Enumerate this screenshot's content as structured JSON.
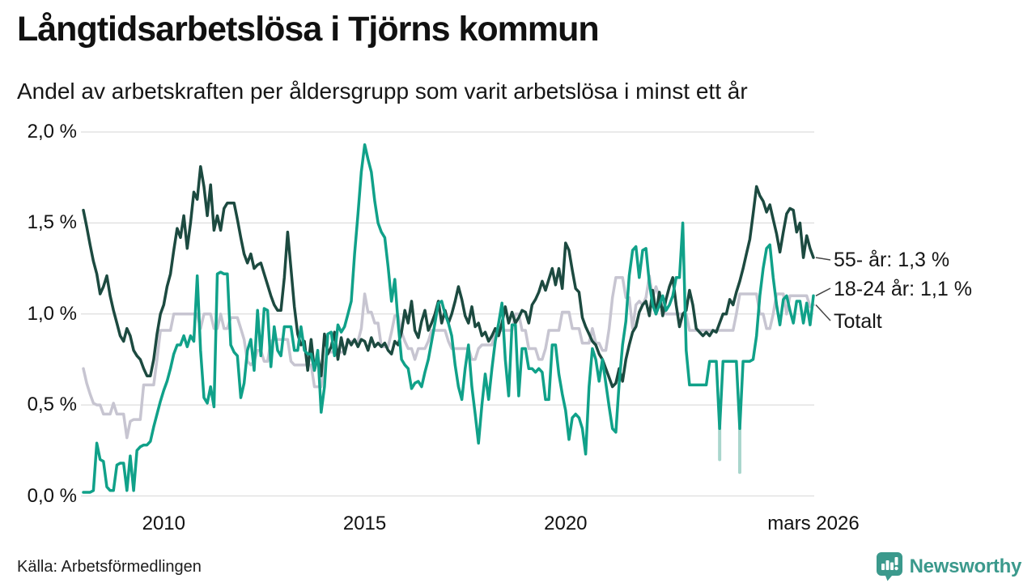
{
  "header": {
    "title": "Långtidsarbetslösa i Tjörns kommun",
    "subtitle": "Andel av arbetskraften per åldersgrupp som varit arbetslösa i minst ett år"
  },
  "footer": {
    "source": "Källa: Arbetsförmedlingen",
    "brand": "Newsworthy"
  },
  "colors": {
    "older": "#1c4a40",
    "youth": "#10a189",
    "total": "#c7c5d1",
    "faint": "#a9d6cc",
    "gridline": "#dedede",
    "connector": "#444444",
    "brand_teal": "#3b998c"
  },
  "chart_data": {
    "type": "line",
    "title": "Långtidsarbetslösa i Tjörns kommun",
    "subtitle": "Andel av arbetskraften per åldersgrupp som varit arbetslösa i minst ett år",
    "x_start": "2008-01",
    "x_end": "2026-03",
    "months_total": 219,
    "ylim": [
      0,
      2.0
    ],
    "grid": true,
    "legend_position": "right-end-labels",
    "y_ticks": [
      {
        "label": "0,0 %",
        "value": 0.0
      },
      {
        "label": "0,5 %",
        "value": 0.5
      },
      {
        "label": "1,0 %",
        "value": 1.0
      },
      {
        "label": "1,5 %",
        "value": 1.5
      },
      {
        "label": "2,0 %",
        "value": 2.0
      }
    ],
    "x_ticks": [
      {
        "label": "2010",
        "month_index": 24
      },
      {
        "label": "2015",
        "month_index": 84
      },
      {
        "label": "2020",
        "month_index": 144
      },
      {
        "label": "mars 2026",
        "month_index": 218
      }
    ],
    "series": [
      {
        "name": "55- år",
        "end_label": "55- år: 1,3 %",
        "end_value_label": "1,3 %",
        "color_key": "older",
        "values": [
          1.57,
          1.48,
          1.38,
          1.29,
          1.22,
          1.11,
          1.15,
          1.21,
          1.1,
          1.02,
          0.95,
          0.88,
          0.85,
          0.92,
          0.88,
          0.8,
          0.77,
          0.75,
          0.7,
          0.66,
          0.66,
          0.75,
          0.89,
          1.0,
          1.05,
          1.15,
          1.22,
          1.35,
          1.47,
          1.42,
          1.54,
          1.36,
          1.5,
          1.67,
          1.63,
          1.81,
          1.7,
          1.54,
          1.71,
          1.46,
          1.54,
          1.46,
          1.58,
          1.61,
          1.61,
          1.61,
          1.52,
          1.42,
          1.33,
          1.28,
          1.33,
          1.25,
          1.27,
          1.28,
          1.22,
          1.16,
          1.1,
          1.05,
          1.02,
          1.02,
          1.2,
          1.45,
          1.25,
          1.04,
          0.89,
          0.83,
          0.85,
          0.69,
          0.86,
          0.69,
          0.77,
          0.66,
          0.89,
          0.78,
          0.82,
          0.9,
          0.75,
          0.87,
          0.78,
          0.86,
          0.83,
          0.86,
          0.82,
          0.86,
          0.85,
          0.8,
          0.87,
          0.82,
          0.84,
          0.82,
          0.84,
          0.8,
          0.78,
          0.85,
          0.83,
          0.9,
          1.02,
          0.95,
          1.07,
          0.91,
          0.87,
          0.96,
          1.02,
          0.91,
          0.95,
          1.0,
          1.07,
          0.95,
          1.02,
          0.95,
          1.0,
          1.07,
          1.15,
          1.08,
          0.99,
          0.95,
          1.04,
          0.93,
          0.95,
          0.88,
          0.9,
          0.85,
          0.88,
          0.92,
          0.88,
          0.95,
          1.04,
          0.95,
          1.01,
          0.95,
          0.98,
          1.02,
          1.01,
          0.95,
          1.05,
          1.08,
          1.12,
          1.18,
          1.13,
          1.19,
          1.25,
          1.16,
          1.25,
          1.14,
          1.39,
          1.35,
          1.24,
          1.14,
          1.12,
          0.98,
          0.93,
          0.89,
          0.85,
          0.83,
          0.78,
          0.75,
          0.7,
          0.65,
          0.6,
          0.62,
          0.7,
          0.63,
          0.75,
          0.83,
          0.9,
          0.93,
          1.01,
          1.05,
          1.07,
          0.99,
          1.13,
          1.0,
          1.12,
          0.99,
          1.08,
          1.15,
          1.2,
          1.05,
          0.93,
          1.0,
          1.02,
          1.13,
          1.05,
          0.92,
          0.9,
          0.88,
          0.9,
          0.88,
          0.91,
          0.9,
          0.95,
          1.0,
          1.0,
          1.08,
          1.05,
          1.12,
          1.18,
          1.25,
          1.33,
          1.41,
          1.55,
          1.7,
          1.65,
          1.62,
          1.56,
          1.6,
          1.52,
          1.44,
          1.34,
          1.45,
          1.55,
          1.58,
          1.57,
          1.45,
          1.5,
          1.31,
          1.43,
          1.36,
          1.31
        ]
      },
      {
        "name": "18-24 år",
        "end_label": "18-24 år: 1,1 %",
        "end_value_label": "1,1 %",
        "color_key": "youth",
        "values": [
          0.02,
          0.02,
          0.02,
          0.03,
          0.29,
          0.2,
          0.19,
          0.05,
          0.03,
          0.03,
          0.17,
          0.18,
          0.18,
          0.03,
          0.22,
          0.03,
          0.25,
          0.27,
          0.28,
          0.28,
          0.3,
          0.38,
          0.45,
          0.52,
          0.58,
          0.63,
          0.7,
          0.78,
          0.83,
          0.83,
          0.88,
          0.82,
          0.88,
          0.85,
          1.21,
          0.8,
          0.54,
          0.51,
          0.6,
          0.49,
          1.22,
          1.23,
          1.22,
          1.22,
          0.83,
          0.79,
          0.77,
          0.54,
          0.62,
          0.8,
          0.86,
          0.69,
          1.02,
          0.77,
          1.03,
          1.02,
          0.71,
          0.93,
          0.8,
          0.77,
          0.93,
          0.93,
          0.93,
          0.8,
          0.8,
          0.93,
          0.8,
          0.78,
          0.78,
          0.69,
          0.8,
          0.46,
          0.6,
          0.89,
          0.9,
          0.77,
          0.94,
          0.9,
          0.93,
          1.0,
          1.07,
          1.33,
          1.55,
          1.78,
          1.93,
          1.85,
          1.78,
          1.62,
          1.5,
          1.45,
          1.42,
          1.26,
          1.07,
          1.19,
          0.95,
          0.75,
          0.72,
          0.7,
          0.59,
          0.62,
          0.63,
          0.6,
          0.68,
          0.75,
          0.85,
          0.95,
          1.06,
          1.07,
          1.0,
          0.95,
          0.88,
          0.72,
          0.6,
          0.53,
          0.7,
          0.83,
          0.6,
          0.45,
          0.29,
          0.5,
          0.67,
          0.53,
          0.7,
          0.85,
          0.95,
          1.06,
          0.75,
          0.55,
          0.94,
          0.94,
          0.55,
          0.81,
          0.81,
          0.7,
          0.7,
          0.68,
          0.7,
          0.68,
          0.53,
          0.53,
          0.83,
          0.83,
          0.67,
          0.56,
          0.47,
          0.31,
          0.43,
          0.45,
          0.43,
          0.37,
          0.23,
          0.6,
          0.81,
          0.75,
          0.63,
          0.75,
          0.62,
          0.49,
          0.37,
          0.35,
          0.62,
          0.83,
          0.96,
          1.21,
          1.35,
          1.37,
          1.2,
          1.35,
          1.36,
          1.17,
          1.05,
          1.0,
          1.05,
          1.1,
          1.02,
          1.05,
          1.1,
          1.2,
          1.2,
          1.5,
          0.8,
          0.61,
          0.61,
          0.61,
          0.61,
          0.61,
          0.61,
          0.74,
          0.74,
          0.74,
          0.37,
          0.74,
          0.74,
          0.74,
          0.74,
          0.74,
          0.37,
          0.74,
          0.74,
          0.74,
          0.75,
          0.88,
          1.1,
          1.25,
          1.36,
          1.38,
          1.2,
          1.05,
          0.94,
          1.08,
          1.1,
          1.02,
          0.95,
          1.07,
          1.07,
          0.95,
          1.06,
          0.94,
          1.1
        ]
      },
      {
        "name": "Totalt",
        "end_label": "Totalt",
        "end_value_label": "",
        "color_key": "total",
        "values": [
          0.7,
          0.62,
          0.56,
          0.51,
          0.5,
          0.5,
          0.45,
          0.45,
          0.45,
          0.51,
          0.45,
          0.45,
          0.45,
          0.32,
          0.41,
          0.42,
          0.42,
          0.42,
          0.61,
          0.61,
          0.61,
          0.61,
          0.75,
          0.91,
          0.91,
          0.91,
          0.91,
          1.0,
          1.0,
          1.0,
          1.0,
          1.0,
          1.0,
          1.0,
          1.0,
          0.92,
          1.0,
          1.0,
          1.0,
          0.92,
          0.92,
          1.0,
          0.92,
          0.92,
          0.98,
          0.98,
          0.98,
          0.92,
          0.86,
          0.74,
          0.72,
          0.74,
          0.8,
          0.8,
          0.74,
          0.74,
          0.85,
          0.86,
          0.86,
          0.86,
          0.86,
          0.86,
          0.74,
          0.72,
          0.72,
          0.72,
          0.72,
          0.72,
          0.72,
          0.6,
          0.6,
          0.6,
          0.72,
          0.79,
          0.79,
          0.79,
          0.79,
          0.79,
          0.79,
          0.85,
          0.85,
          0.85,
          0.85,
          0.92,
          1.11,
          1.01,
          1.01,
          0.95,
          0.95,
          0.82,
          0.82,
          0.82,
          0.9,
          0.99,
          0.99,
          0.9,
          0.85,
          0.81,
          0.81,
          0.75,
          0.81,
          0.81,
          0.81,
          0.85,
          0.91,
          0.91,
          0.91,
          0.91,
          0.91,
          0.85,
          0.81,
          0.81,
          0.81,
          0.81,
          0.81,
          0.81,
          0.75,
          0.75,
          0.81,
          0.83,
          0.83,
          0.83,
          0.83,
          0.91,
          0.91,
          0.91,
          0.91,
          0.91,
          0.91,
          1.0,
          1.0,
          0.91,
          0.91,
          0.81,
          0.81,
          0.81,
          0.75,
          0.75,
          0.81,
          0.91,
          0.91,
          0.91,
          0.91,
          1.01,
          1.01,
          1.01,
          0.92,
          0.92,
          0.92,
          0.84,
          0.84,
          0.84,
          0.92,
          0.84,
          0.84,
          0.8,
          0.8,
          0.92,
          1.09,
          1.2,
          1.2,
          1.2,
          1.09,
          1.09,
          0.92,
          1.05,
          1.07,
          1.05,
          1.09,
          1.21,
          1.09,
          1.15,
          1.09,
          1.02,
          1.0,
          1.0,
          1.0,
          1.0,
          1.0,
          1.0,
          1.0,
          0.91,
          0.91,
          0.91,
          0.91,
          0.91,
          0.91,
          0.91,
          0.91,
          0.91,
          0.91,
          0.91,
          0.91,
          0.91,
          0.91,
          1.0,
          1.11,
          1.11,
          1.11,
          1.11,
          1.11,
          1.11,
          1.0,
          1.0,
          0.92,
          0.92,
          1.0,
          1.11,
          1.11,
          1.11,
          1.0,
          1.1,
          1.1,
          1.1,
          1.1,
          1.1,
          1.1,
          1.04,
          1.05
        ]
      }
    ],
    "faint_dips": [
      {
        "series": "18-24 år",
        "month_index": 190,
        "from": 0.4,
        "to": 0.2
      },
      {
        "series": "18-24 år",
        "month_index": 196,
        "from": 0.4,
        "to": 0.13
      }
    ]
  }
}
